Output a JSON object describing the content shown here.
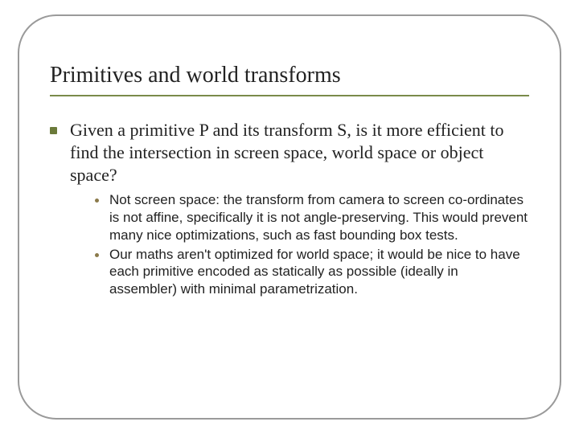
{
  "slide": {
    "title": "Primitives and world transforms",
    "main_bullet": "Given a primitive P and its transform S, is it more efficient to find the intersection in screen space, world space or object space?",
    "sub_bullets": [
      "Not screen space: the transform from camera to screen co-ordinates is not affine, specifically it is not angle-preserving. This would prevent many nice optimizations, such as fast bounding box tests.",
      "Our maths aren't optimized for world space; it would be nice to have each primitive encoded as statically as possible (ideally in assembler) with minimal parametrization."
    ]
  },
  "style": {
    "frame_border_color": "#9a9a9a",
    "frame_border_radius": 48,
    "title_underline_color": "#7a8a4a",
    "main_bullet_color": "#6b7a3a",
    "sub_bullet_color": "#8b7a4a",
    "title_fontsize": 28,
    "main_fontsize": 22,
    "sub_fontsize": 17,
    "background": "#ffffff",
    "body_font": "Times New Roman",
    "sub_font": "Arial"
  }
}
